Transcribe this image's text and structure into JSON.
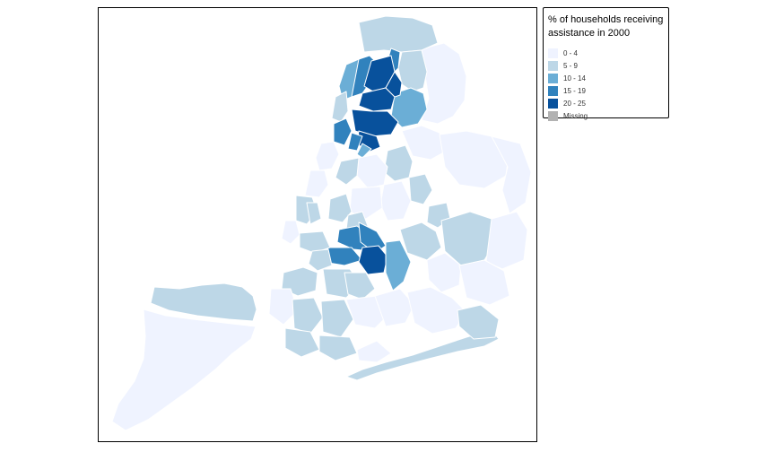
{
  "legend": {
    "title_line1": "% of households receiving",
    "title_line2": "assistance in 2000",
    "classes": [
      {
        "label": "0 - 4",
        "color": "#eff3ff"
      },
      {
        "label": "5 - 9",
        "color": "#bdd7e7"
      },
      {
        "label": "10 - 14",
        "color": "#6baed6"
      },
      {
        "label": "15 - 19",
        "color": "#3182bd"
      },
      {
        "label": "20 - 25",
        "color": "#08519c"
      },
      {
        "label": "Missing",
        "color": "#b2b2b2"
      }
    ]
  },
  "map": {
    "border_color": "#ffffff",
    "classes_order": [
      "0 - 4",
      "5 - 9",
      "10 - 14",
      "15 - 19",
      "20 - 25"
    ]
  }
}
